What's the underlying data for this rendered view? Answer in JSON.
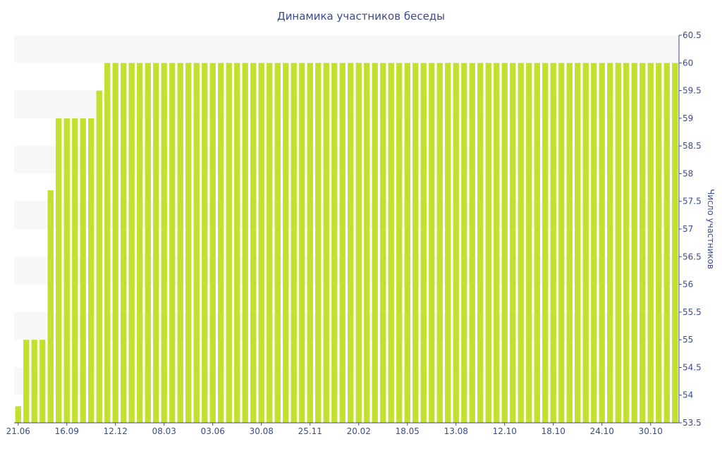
{
  "chart_data": {
    "type": "bar",
    "title": "Динамика участников беседы",
    "xlabel": "",
    "ylabel": "Число участников",
    "ylim": [
      53.5,
      60.5
    ],
    "y_axis_position": "right",
    "yticks": [
      53.5,
      54,
      54.5,
      55,
      55.5,
      56,
      56.5,
      57,
      57.5,
      58,
      58.5,
      59,
      59.5,
      60,
      60.5
    ],
    "ytick_labels": [
      "53.5",
      "54",
      "54.5",
      "55",
      "55.5",
      "56",
      "56.5",
      "57",
      "57.5",
      "58",
      "58.5",
      "59",
      "59.5",
      "60",
      "60.5"
    ],
    "xtick_labels": [
      {
        "label": "21.06",
        "index": 0
      },
      {
        "label": "16.09",
        "index": 6
      },
      {
        "label": "12.12",
        "index": 12
      },
      {
        "label": "08.03",
        "index": 18
      },
      {
        "label": "03.06",
        "index": 24
      },
      {
        "label": "30.08",
        "index": 30
      },
      {
        "label": "25.11",
        "index": 36
      },
      {
        "label": "20.02",
        "index": 42
      },
      {
        "label": "18.05",
        "index": 48
      },
      {
        "label": "13.08",
        "index": 54
      },
      {
        "label": "12.10",
        "index": 60
      },
      {
        "label": "18.10",
        "index": 66
      },
      {
        "label": "24.10",
        "index": 72
      },
      {
        "label": "30.10",
        "index": 78
      }
    ],
    "grid": "alternating horizontal bands",
    "bar_color": "#c2e02e",
    "band_color": "#f7f7f7",
    "values": [
      53.8,
      55,
      55,
      55,
      57.7,
      59,
      59,
      59,
      59,
      59,
      59.5,
      60,
      60,
      60,
      60,
      60,
      60,
      60,
      60,
      60,
      60,
      60,
      60,
      60,
      60,
      60,
      60,
      60,
      60,
      60,
      60,
      60,
      60,
      60,
      60,
      60,
      60,
      60,
      60,
      60,
      60,
      60,
      60,
      60,
      60,
      60,
      60,
      60,
      60,
      60,
      60,
      60,
      60,
      60,
      60,
      60,
      60,
      60,
      60,
      60,
      60,
      60,
      60,
      60,
      60,
      60,
      60,
      60,
      60,
      60,
      60,
      60,
      60,
      60,
      60,
      60,
      60,
      60,
      60,
      60,
      60,
      60
    ]
  }
}
